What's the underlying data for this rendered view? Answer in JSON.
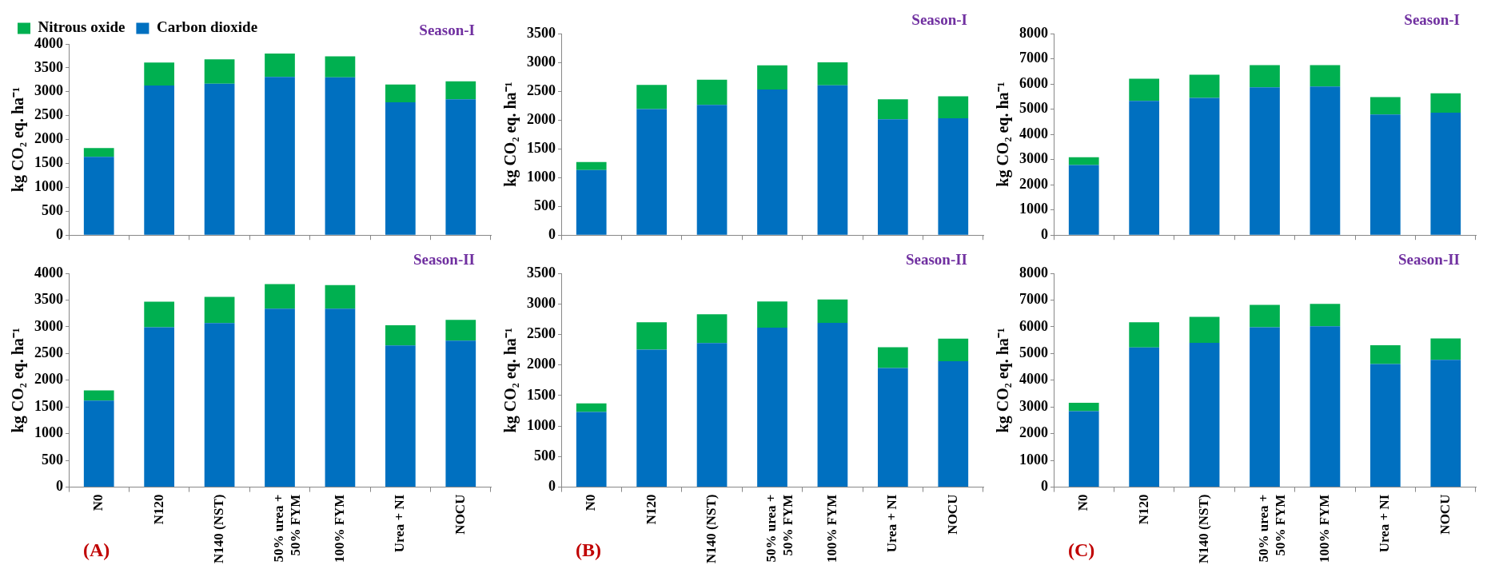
{
  "chart_data": [
    {
      "type": "bar",
      "title": "Season-I",
      "ylabel": "kg CO₂ eq. ha⁻¹",
      "stacked": true,
      "grid": false,
      "legend": "top left",
      "tick_labels": "y",
      "categories": [
        null,
        null,
        null,
        null,
        null,
        null,
        null
      ],
      "ylim": [
        0,
        4000
      ],
      "yticks": [
        0,
        500,
        1000,
        1500,
        2000,
        2500,
        3000,
        3500,
        4000
      ],
      "series": [
        {
          "name": "Carbon dioxide",
          "color": "#0070c0",
          "values": [
            1640,
            3130,
            3170,
            3310,
            3300,
            2780,
            2840
          ]
        },
        {
          "name": "Nitrous oxide",
          "color": "#00b050",
          "values": [
            180,
            480,
            510,
            490,
            440,
            370,
            380
          ]
        }
      ]
    },
    {
      "type": "bar",
      "title": "Season-I",
      "ylabel": "kg CO₂ eq. ha⁻¹",
      "stacked": true,
      "grid": false,
      "tick_labels": "y",
      "categories": [
        null,
        null,
        null,
        null,
        null,
        null,
        null
      ],
      "ylim": [
        0,
        3500
      ],
      "yticks": [
        0,
        500,
        1000,
        1500,
        2000,
        2500,
        3000,
        3500
      ],
      "series": [
        {
          "color": "#0070c0",
          "values": [
            1130,
            2190,
            2260,
            2530,
            2600,
            2010,
            2030
          ]
        },
        {
          "color": "#00b050",
          "values": [
            140,
            420,
            440,
            420,
            400,
            350,
            380
          ]
        }
      ]
    },
    {
      "type": "bar",
      "title": "Season-I",
      "ylabel": "kg CO₂ eq. ha⁻¹",
      "stacked": true,
      "grid": false,
      "tick_labels": "y",
      "categories": [
        null,
        null,
        null,
        null,
        null,
        null,
        null
      ],
      "ylim": [
        0,
        8000
      ],
      "yticks": [
        0,
        1000,
        2000,
        3000,
        4000,
        5000,
        6000,
        7000,
        8000
      ],
      "series": [
        {
          "color": "#0070c0",
          "values": [
            2780,
            5330,
            5450,
            5870,
            5900,
            4790,
            4860
          ]
        },
        {
          "color": "#00b050",
          "values": [
            310,
            880,
            920,
            880,
            850,
            690,
            770
          ]
        }
      ]
    },
    {
      "type": "bar",
      "title": "Season-II",
      "ylabel": "kg CO₂ eq. ha⁻¹",
      "stacked": true,
      "grid": false,
      "annotations": [
        "(A)"
      ],
      "categories": [
        "N0",
        "N120",
        "N140 (NST)",
        "50% urea + 50% FYM",
        "100% FYM",
        "Urea + NI",
        "NOCU"
      ],
      "ylim": [
        0,
        4000
      ],
      "yticks": [
        0,
        500,
        1000,
        1500,
        2000,
        2500,
        3000,
        3500,
        4000
      ],
      "series": [
        {
          "color": "#0070c0",
          "values": [
            1620,
            2990,
            3070,
            3340,
            3340,
            2650,
            2740
          ]
        },
        {
          "color": "#00b050",
          "values": [
            190,
            480,
            490,
            460,
            440,
            380,
            390
          ]
        }
      ]
    },
    {
      "type": "bar",
      "title": "Season-II",
      "ylabel": "kg CO₂ eq. ha⁻¹",
      "stacked": true,
      "grid": false,
      "annotations": [
        "(B)"
      ],
      "categories": [
        "N0",
        "N120",
        "N140 (NST)",
        "50% urea + 50% FYM",
        "100% FYM",
        "Urea + NI",
        "NOCU"
      ],
      "ylim": [
        0,
        3500
      ],
      "yticks": [
        0,
        500,
        1000,
        1500,
        2000,
        2500,
        3000,
        3500
      ],
      "series": [
        {
          "color": "#0070c0",
          "values": [
            1230,
            2250,
            2360,
            2610,
            2690,
            1950,
            2060
          ]
        },
        {
          "color": "#00b050",
          "values": [
            140,
            450,
            470,
            430,
            380,
            340,
            370
          ]
        }
      ]
    },
    {
      "type": "bar",
      "title": "Season-II",
      "ylabel": "kg CO₂ eq. ha⁻¹",
      "stacked": true,
      "grid": false,
      "annotations": [
        "(C)"
      ],
      "categories": [
        "N0",
        "N120",
        "N140 (NST)",
        "50% urea + 50% FYM",
        "100% FYM",
        "Urea + NI",
        "NOCU"
      ],
      "ylim": [
        0,
        8000
      ],
      "yticks": [
        0,
        1000,
        2000,
        3000,
        4000,
        5000,
        6000,
        7000,
        8000
      ],
      "series": [
        {
          "color": "#0070c0",
          "values": [
            2840,
            5230,
            5400,
            5980,
            6020,
            4610,
            4760
          ]
        },
        {
          "color": "#00b050",
          "values": [
            320,
            940,
            970,
            840,
            840,
            700,
            800
          ]
        }
      ]
    }
  ]
}
